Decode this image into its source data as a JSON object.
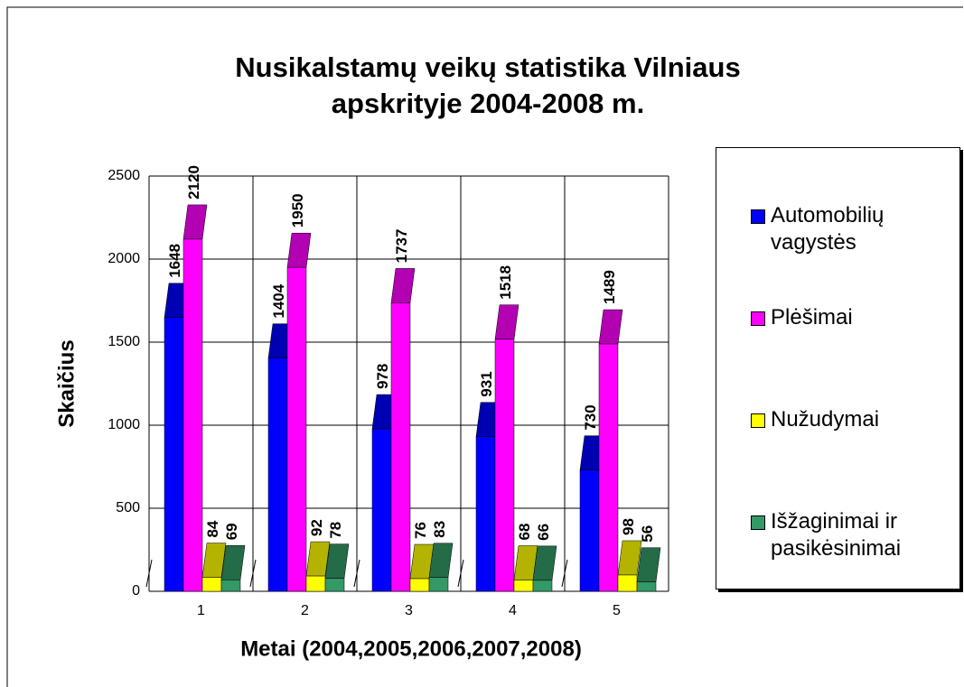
{
  "chart_data": {
    "type": "bar3d",
    "title": "Nusikalstamų veikų statistika Vilniaus apskrityje 2004-2008 m.",
    "xlabel": "Metai (2004,2005,2006,2007,2008)",
    "ylabel": "Skaičius",
    "categories": [
      "1",
      "2",
      "3",
      "4",
      "5"
    ],
    "series": [
      {
        "name": "Automobilių vagystės",
        "color": "#0000ff",
        "values": [
          1648,
          1404,
          978,
          931,
          730
        ]
      },
      {
        "name": "Plėšimai",
        "color": "#ff00ff",
        "values": [
          2120,
          1950,
          1737,
          1518,
          1489
        ]
      },
      {
        "name": "Nužudymai",
        "color": "#ffff00",
        "values": [
          84,
          92,
          76,
          68,
          98
        ]
      },
      {
        "name": "Išžaginimai ir pasikėsinimai",
        "color": "#339966",
        "values": [
          69,
          78,
          83,
          66,
          56
        ]
      }
    ],
    "ylim": [
      0,
      2500
    ],
    "yticks": [
      0,
      500,
      1000,
      1500,
      2000,
      2500
    ],
    "grid": true,
    "legend": "right"
  }
}
